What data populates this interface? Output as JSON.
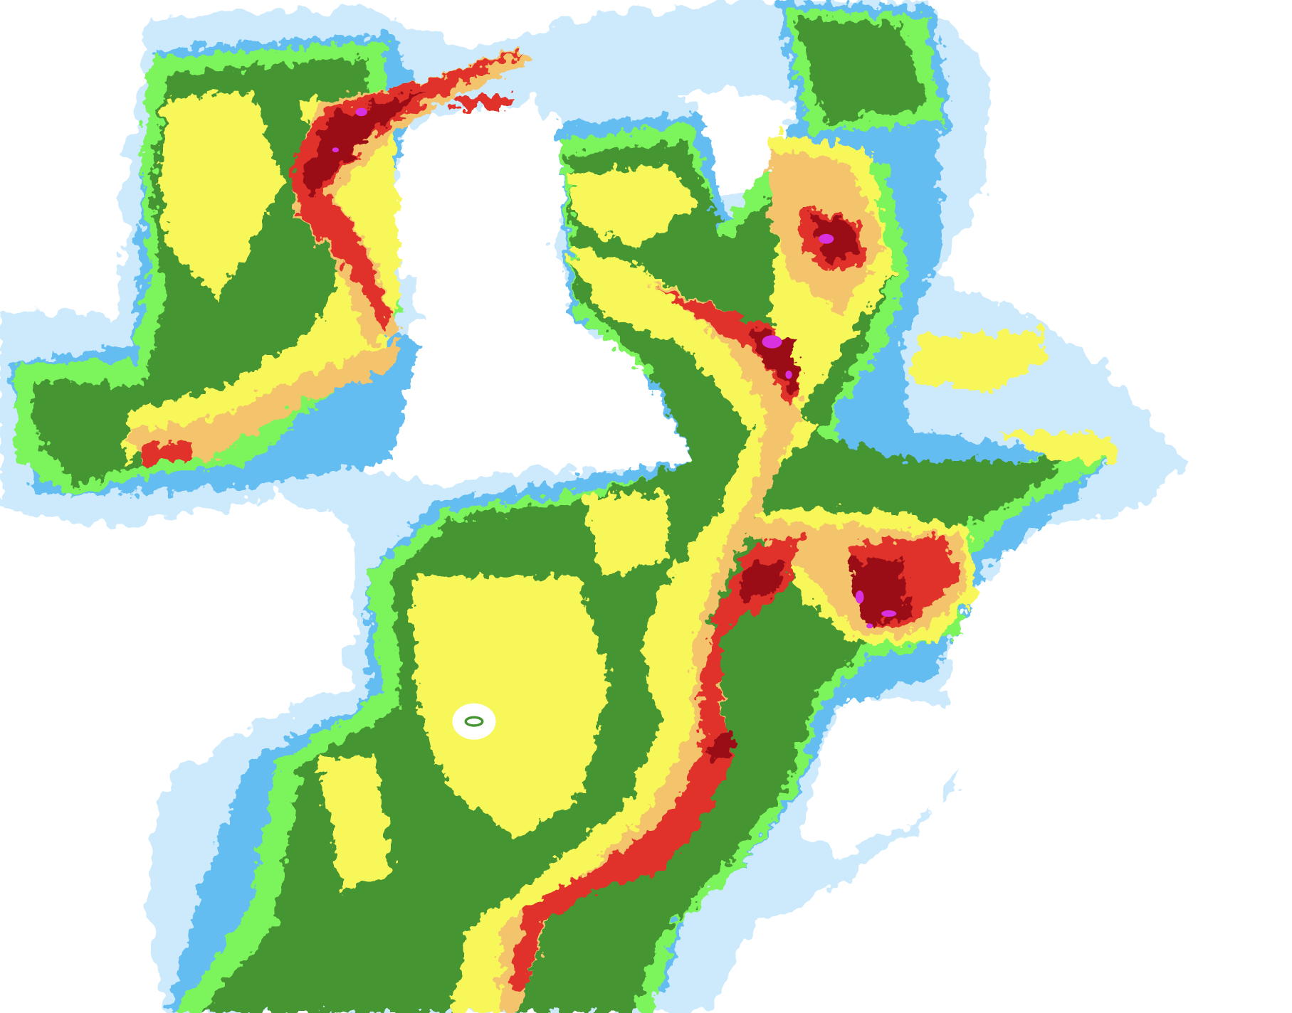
{
  "map": {
    "type": "weather-radar-reflectivity",
    "palette": {
      "background": "#ffffff",
      "very_light": "#cdeafd",
      "light": "#63bdf1",
      "light_green": "#7cf45c",
      "green": "#459532",
      "yellow": "#f8f75a",
      "orange": "#f4c46c",
      "red": "#e0322a",
      "dark_red": "#9b1016",
      "magenta": "#d831e0"
    },
    "radar_site_icon": "radar-site-ring-icon"
  }
}
